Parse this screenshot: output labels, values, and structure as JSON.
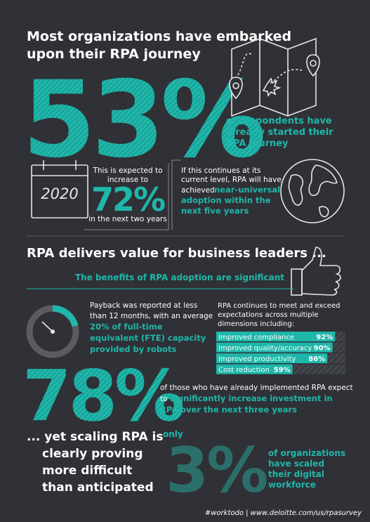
{
  "section1": {
    "title_lines": [
      "Most organizations have embarked",
      "upon their RPA journey"
    ],
    "big_stat": "53%",
    "stat_caption_lines": [
      "of respondents have",
      "already started their",
      "RPA journey"
    ],
    "calendar_year": "2020",
    "forecast_intro_lines": [
      "This is expected to",
      "increase to"
    ],
    "forecast_stat": "72%",
    "forecast_outro": "in the next two years",
    "trend_intro_lines": [
      "If this continues at its",
      "current level, RPA will have",
      "achieved"
    ],
    "trend_highlight_lines": [
      "near-universal",
      "adoption within the",
      "next five years"
    ]
  },
  "section2": {
    "title": "RPA delivers value for business leaders ...",
    "subtitle": "The benefits of RPA adoption are significant",
    "payback_lines": [
      "Payback was reported at less",
      "than 12 months, with an average"
    ],
    "payback_highlight_lines": [
      "20% of full-time",
      "equivalent (FTE) capacity",
      "provided by robots"
    ],
    "expectations_lines": [
      "RPA continues to meet and exceed",
      "expectations across multiple",
      "dimensions including:"
    ],
    "benefits": {
      "categories": [
        "Improved compliance",
        "Improved quality/accuracy",
        "Improved productivity",
        "Cost reduction"
      ],
      "values": [
        92,
        90,
        86,
        59
      ],
      "value_labels": [
        "92%",
        "90%",
        "86%",
        "59%"
      ],
      "color": "#1fb7aa"
    },
    "big_stat": "78%",
    "investment_intro_lines": [
      "of those who have already implemented RPA expect",
      "to"
    ],
    "investment_highlight_lines": [
      "significantly increase investment in",
      "RPA over the next three years"
    ]
  },
  "section3": {
    "title_lines": [
      "... yet scaling RPA is",
      "clearly proving",
      "more difficult",
      "than anticipated"
    ],
    "qualifier": "only",
    "big_stat": "3%",
    "stat_caption_lines": [
      "of organizations",
      "have scaled",
      "their digital",
      "workforce"
    ]
  },
  "footer": "#worktodo | www.deloitte.com/us/rpasurvey"
}
